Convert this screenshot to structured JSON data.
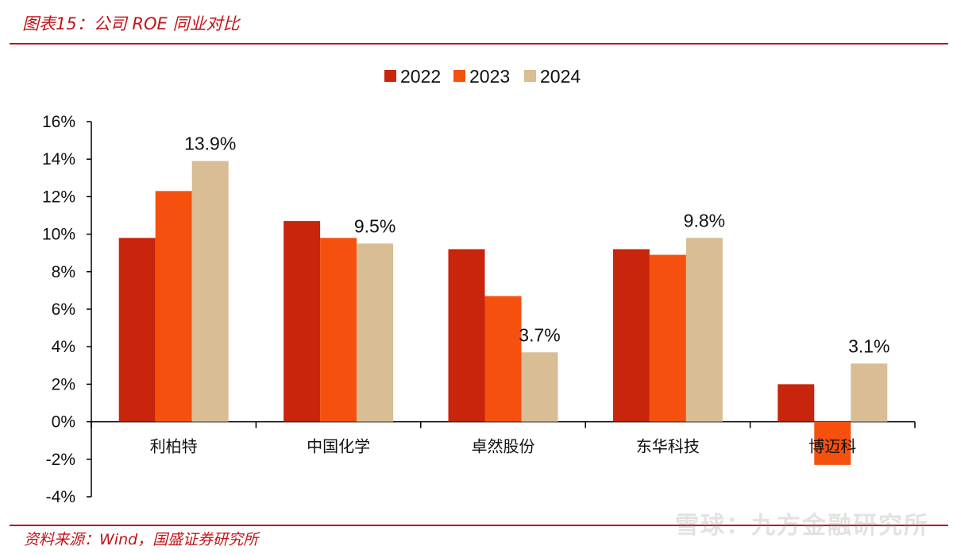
{
  "header": {
    "title": "图表15：公司 ROE 同业对比"
  },
  "footer": {
    "source": "资料来源：Wind，国盛证券研究所"
  },
  "watermark": {
    "text": "雪球：九方金融研究所"
  },
  "colors": {
    "s2022": "#c8250c",
    "s2023": "#f5500e",
    "s2024": "#d8bd95",
    "accent": "#c0141a"
  },
  "chart_data": {
    "type": "bar",
    "title": "",
    "xlabel": "",
    "ylabel": "",
    "ylim": [
      -4,
      16
    ],
    "yticks": [
      -4,
      -2,
      0,
      2,
      4,
      6,
      8,
      10,
      12,
      14,
      16
    ],
    "ytick_labels": [
      "-4%",
      "-2%",
      "0%",
      "2%",
      "4%",
      "6%",
      "8%",
      "10%",
      "12%",
      "14%",
      "16%"
    ],
    "unit": "%",
    "categories": [
      "利柏特",
      "中国化学",
      "卓然股份",
      "东华科技",
      "博迈科"
    ],
    "series": [
      {
        "name": "2022",
        "values": [
          9.8,
          10.7,
          9.2,
          9.2,
          2.0
        ]
      },
      {
        "name": "2023",
        "values": [
          12.3,
          9.8,
          6.7,
          8.9,
          -2.3
        ]
      },
      {
        "name": "2024",
        "values": [
          13.9,
          9.5,
          3.7,
          9.8,
          3.1
        ]
      }
    ],
    "data_labels": [
      {
        "series": "2024",
        "category": "利柏特",
        "text": "13.9%"
      },
      {
        "series": "2024",
        "category": "中国化学",
        "text": "9.5%"
      },
      {
        "series": "2024",
        "category": "卓然股份",
        "text": "3.7%"
      },
      {
        "series": "2024",
        "category": "东华科技",
        "text": "9.8%"
      },
      {
        "series": "2024",
        "category": "博迈科",
        "text": "3.1%"
      }
    ],
    "legend": {
      "position": "top-center",
      "entries": [
        "2022",
        "2023",
        "2024"
      ]
    },
    "grid": false
  }
}
